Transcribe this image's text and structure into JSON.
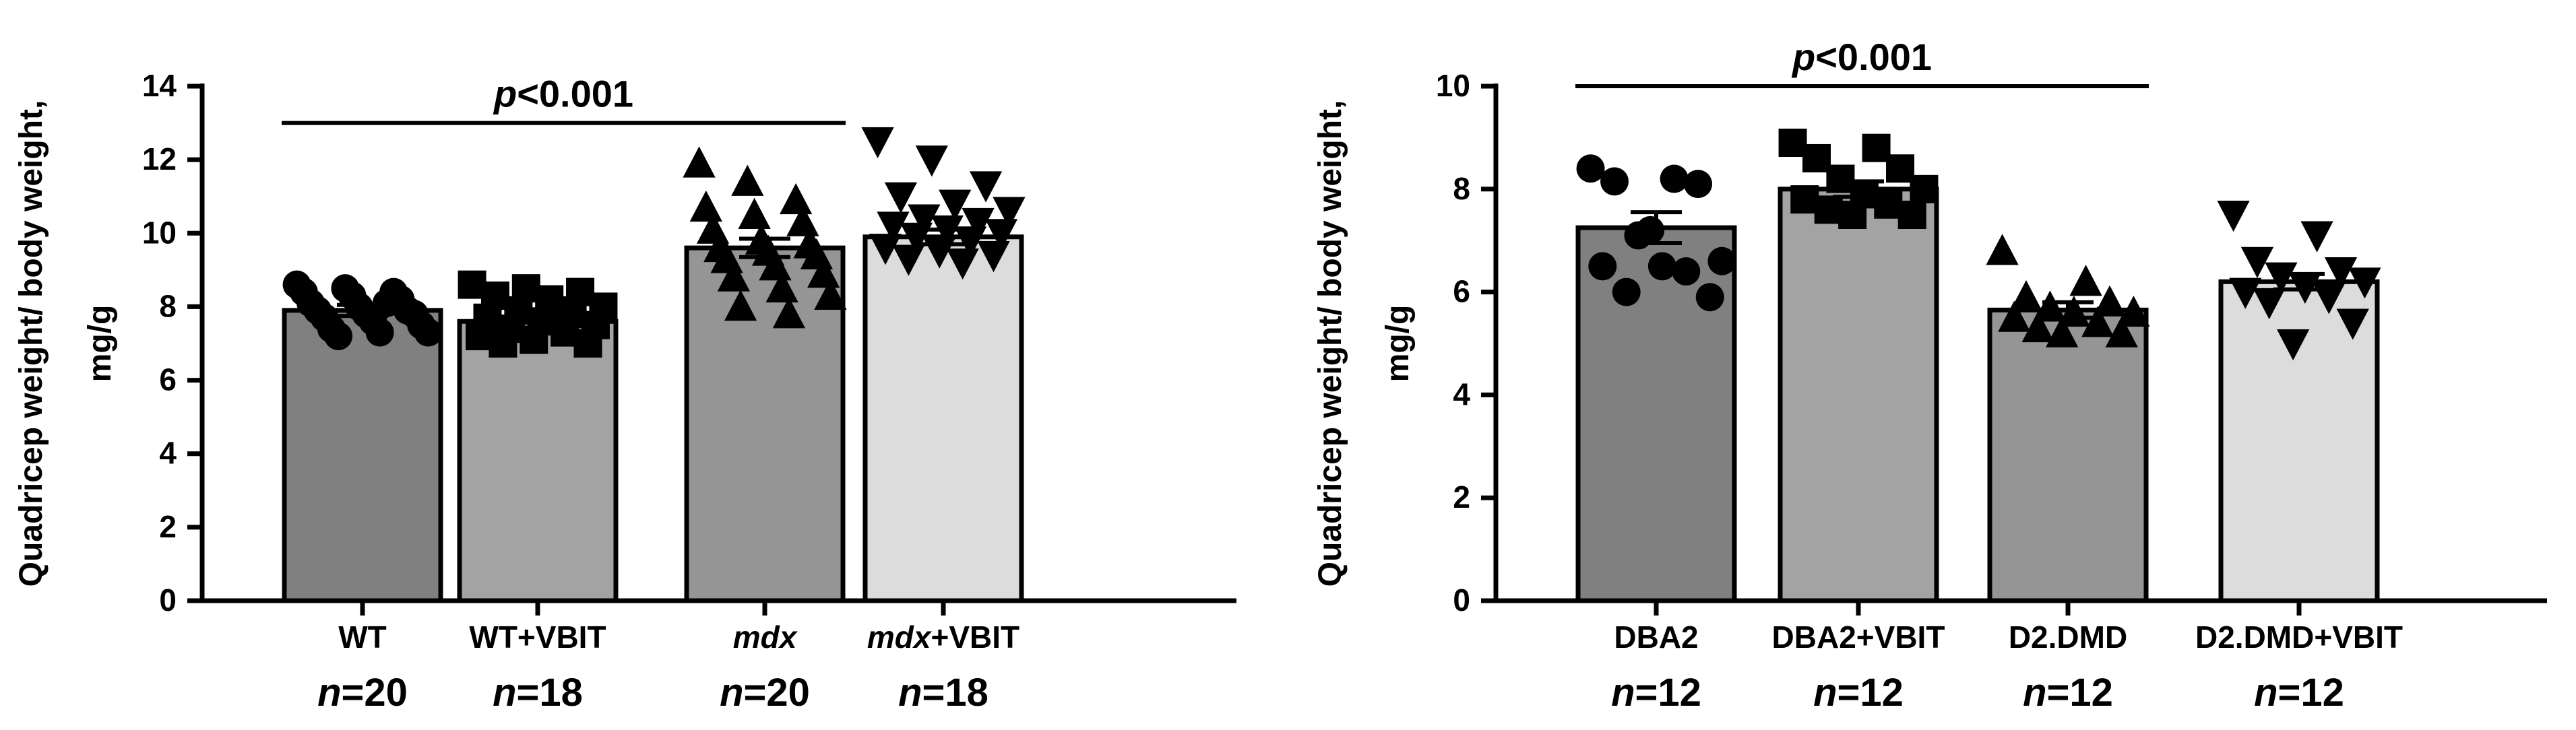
{
  "chart_data": [
    {
      "type": "bar",
      "panel": "left",
      "ylabel_line1": "Quadricep weight/ body weight,",
      "ylabel_line2": "mg/g",
      "ylim": [
        0,
        14
      ],
      "yticks": [
        0,
        2,
        4,
        6,
        8,
        10,
        12,
        14
      ],
      "categories": [
        {
          "parts": [
            {
              "text": "WT",
              "italic": false
            }
          ],
          "n_prefix": "n",
          "n_value": "=20"
        },
        {
          "parts": [
            {
              "text": "WT+VBIT",
              "italic": false
            }
          ],
          "n_prefix": "n",
          "n_value": "=18"
        },
        {
          "parts": [
            {
              "text": "mdx",
              "italic": true
            }
          ],
          "n_prefix": "n",
          "n_value": "=20"
        },
        {
          "parts": [
            {
              "text": "mdx",
              "italic": true
            },
            {
              "text": "+VBIT",
              "italic": false
            }
          ],
          "n_prefix": "n",
          "n_value": "=18"
        }
      ],
      "values": [
        7.9,
        7.6,
        9.6,
        9.9
      ],
      "sem": [
        0.15,
        0.2,
        0.25,
        0.2
      ],
      "bar_colors": [
        "#808080",
        "#a3a3a3",
        "#959595",
        "#dcdcdc"
      ],
      "markers": [
        "circle",
        "square",
        "triangle-up",
        "triangle-down"
      ],
      "points": [
        [
          8.6,
          8.5,
          8.4,
          8.4,
          8.3,
          8.2,
          8.1,
          8.0,
          7.9,
          7.9,
          7.8,
          7.8,
          7.7,
          7.6,
          7.5,
          7.4,
          7.3,
          7.3,
          7.2,
          8.1
        ],
        [
          8.6,
          8.5,
          8.4,
          8.3,
          8.2,
          8.0,
          7.9,
          7.8,
          7.7,
          7.6,
          7.5,
          7.4,
          7.3,
          7.2,
          7.1,
          7.0,
          7.0,
          7.9
        ],
        [
          11.9,
          11.4,
          10.9,
          10.7,
          10.5,
          10.3,
          10.1,
          9.8,
          9.7,
          9.6,
          9.5,
          9.4,
          9.3,
          9.1,
          8.9,
          8.8,
          8.5,
          8.3,
          8.0,
          7.8
        ],
        [
          12.5,
          12.0,
          11.3,
          11.0,
          10.8,
          10.6,
          10.4,
          10.3,
          10.2,
          10.1,
          10.0,
          9.9,
          9.8,
          9.6,
          9.5,
          9.4,
          9.3,
          9.2
        ]
      ],
      "significance": {
        "from": 0,
        "to": 2,
        "y": 13.0,
        "p_italic": "p",
        "p_rest": "<0.001"
      }
    },
    {
      "type": "bar",
      "panel": "right",
      "ylabel_line1": "Quadricep weight/ body weight,",
      "ylabel_line2": "mg/g",
      "ylim": [
        0,
        10
      ],
      "yticks": [
        0,
        2,
        4,
        6,
        8,
        10
      ],
      "categories": [
        {
          "parts": [
            {
              "text": "DBA2",
              "italic": false
            }
          ],
          "n_prefix": "n",
          "n_value": "=12"
        },
        {
          "parts": [
            {
              "text": "DBA2+VBIT",
              "italic": false
            }
          ],
          "n_prefix": "n",
          "n_value": "=12"
        },
        {
          "parts": [
            {
              "text": "D2.DMD",
              "italic": false
            }
          ],
          "n_prefix": "n",
          "n_value": "=12"
        },
        {
          "parts": [
            {
              "text": "D2.DMD+VBIT",
              "italic": false
            }
          ],
          "n_prefix": "n",
          "n_value": "=12"
        }
      ],
      "values": [
        7.25,
        8.0,
        5.65,
        6.2
      ],
      "sem": [
        0.3,
        0.15,
        0.15,
        0.15
      ],
      "bar_colors": [
        "#808080",
        "#a3a3a3",
        "#959595",
        "#dcdcdc"
      ],
      "markers": [
        "circle",
        "square",
        "triangle-up",
        "triangle-down"
      ],
      "points": [
        [
          8.4,
          8.2,
          8.15,
          8.1,
          7.1,
          6.6,
          6.5,
          6.5,
          6.4,
          6.0,
          5.9,
          7.2
        ],
        [
          8.9,
          8.8,
          8.6,
          8.4,
          8.2,
          8.0,
          7.9,
          7.8,
          7.7,
          7.6,
          7.5,
          7.5
        ],
        [
          6.8,
          6.2,
          5.9,
          5.8,
          5.7,
          5.6,
          5.6,
          5.5,
          5.4,
          5.3,
          5.2,
          5.2
        ],
        [
          7.5,
          7.1,
          6.6,
          6.4,
          6.3,
          6.2,
          6.1,
          6.0,
          5.9,
          5.8,
          5.4,
          5.0
        ]
      ],
      "significance": {
        "from": 0,
        "to": 2,
        "y": 10.0,
        "p_italic": "p",
        "p_rest": "<0.001"
      }
    }
  ]
}
